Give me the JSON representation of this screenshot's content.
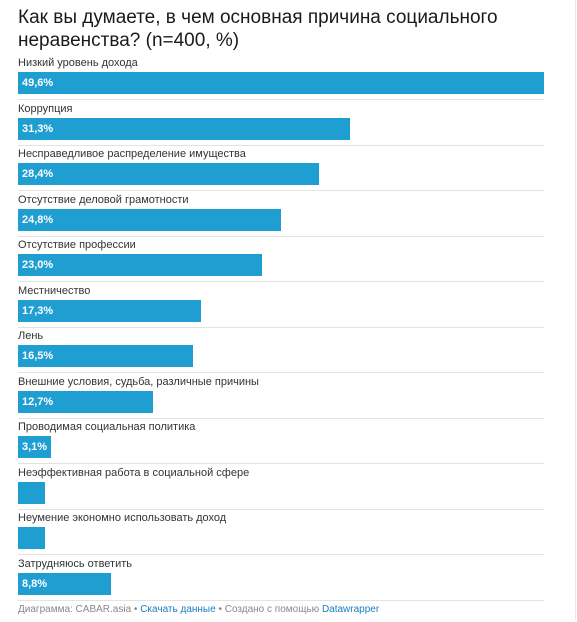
{
  "chart_data": {
    "type": "bar",
    "orientation": "horizontal",
    "title": "Как вы думаете, в чем основная причина социального неравенства? (n=400, %)",
    "categories": [
      "Низкий уровень дохода",
      "Коррупция",
      "Несправедливое распределение имущества",
      "Отсутствие деловой грамотности",
      "Отсутствие профессии",
      "Местничество",
      "Лень",
      "Внешние условия, судьба, различные причины",
      "Проводимая социальная политика",
      "Неэффективная работа в социальной сфере",
      "Неумение экономно использовать доход",
      "Затрудняюсь ответить"
    ],
    "values": [
      49.6,
      31.3,
      28.4,
      24.8,
      23.0,
      17.3,
      16.5,
      12.7,
      3.1,
      2.5,
      2.5,
      8.8
    ],
    "value_labels": [
      "49,6%",
      "31,3%",
      "28,4%",
      "24,8%",
      "23,0%",
      "17,3%",
      "16,5%",
      "12,7%",
      "3,1%",
      "",
      "",
      "8,8%"
    ],
    "xlim": [
      0,
      49.6
    ],
    "bar_color": "#1f9ed1",
    "grid": false
  },
  "footer": {
    "prefix": "Диаграмма: CABAR.asia • ",
    "download_link": "Скачать данные",
    "middle": " • Создано с помощью ",
    "tool_link": "Datawrapper"
  }
}
